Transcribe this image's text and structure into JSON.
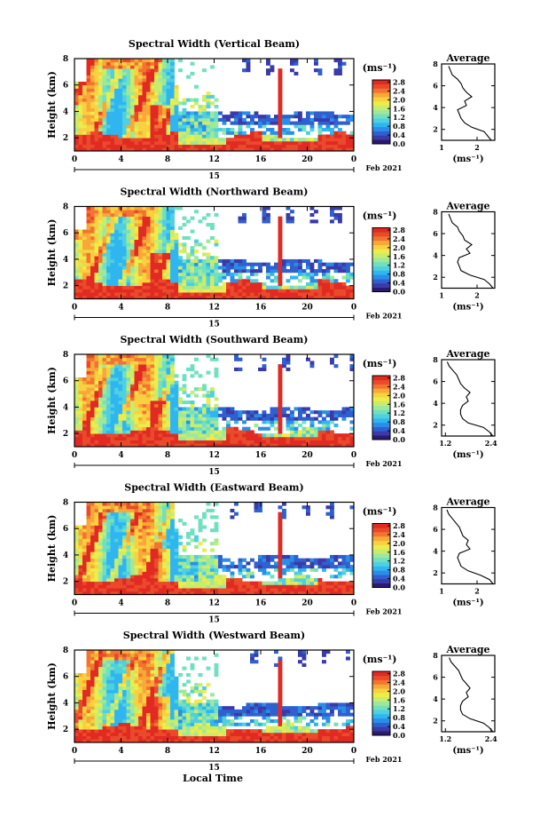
{
  "figure": {
    "xlabel": "Local Time",
    "date_label": "15",
    "date_suffix": "Feb 2021",
    "colorbar_unit": "(ms⁻¹)",
    "avg_title": "Average",
    "avg_xlabel": "(ms⁻¹)",
    "palette": [
      "#2b1a6e",
      "#3a3aa8",
      "#2f60d0",
      "#2a8ee8",
      "#2fb6f0",
      "#4fd0e0",
      "#6fe0c0",
      "#9ee89a",
      "#c8ec6c",
      "#ecec4a",
      "#f8d040",
      "#f8a838",
      "#f27430",
      "#ea4a2a",
      "#e02a22"
    ],
    "missing_color": "#ffffff"
  },
  "chart_data": [
    {
      "type": "heatmap",
      "title": "Spectral Width (Vertical Beam)",
      "ylabel": "Height (km)",
      "x_ticks": [
        "0",
        "4",
        "8",
        "12",
        "16",
        "20",
        "0"
      ],
      "x_range_hours": [
        0,
        24
      ],
      "y_ticks": [
        "2",
        "4",
        "6",
        "8"
      ],
      "y_range_km": [
        1,
        8
      ],
      "colorbar_ticks": [
        "0.0",
        "0.4",
        "0.8",
        "1.2",
        "1.6",
        "2.0",
        "2.4",
        "2.8"
      ],
      "colorbar_range": [
        0.0,
        2.9
      ],
      "average_profile": {
        "x_ticks": [
          "1",
          "2"
        ],
        "x_range": [
          1.0,
          2.5
        ],
        "y_ticks": [
          "2",
          "4",
          "6",
          "8"
        ],
        "height_km": [
          1.0,
          1.4,
          1.8,
          2.2,
          2.6,
          3.0,
          3.4,
          3.8,
          4.2,
          4.6,
          5.0,
          5.4,
          5.8,
          6.2,
          6.6,
          7.0,
          7.4,
          7.8
        ],
        "value": [
          2.4,
          2.3,
          2.2,
          1.85,
          1.65,
          1.55,
          1.5,
          1.45,
          1.7,
          1.65,
          1.85,
          1.7,
          1.6,
          1.55,
          1.45,
          1.3,
          1.25,
          1.2
        ]
      }
    },
    {
      "type": "heatmap",
      "title": "Spectral Width (Northward Beam)",
      "ylabel": "Height (km)",
      "x_ticks": [
        "0",
        "4",
        "8",
        "12",
        "16",
        "20",
        "0"
      ],
      "x_range_hours": [
        0,
        24
      ],
      "y_ticks": [
        "2",
        "4",
        "6",
        "8"
      ],
      "y_range_km": [
        1,
        8
      ],
      "colorbar_ticks": [
        "0.0",
        "0.4",
        "0.8",
        "1.2",
        "1.6",
        "2.0",
        "2.4",
        "2.8"
      ],
      "colorbar_range": [
        0.0,
        2.9
      ],
      "average_profile": {
        "x_ticks": [
          "1",
          "2"
        ],
        "x_range": [
          1.0,
          2.5
        ],
        "y_ticks": [
          "2",
          "4",
          "6",
          "8"
        ],
        "height_km": [
          1.0,
          1.4,
          1.8,
          2.2,
          2.6,
          3.0,
          3.4,
          3.8,
          4.2,
          4.6,
          5.0,
          5.4,
          5.8,
          6.2,
          6.6,
          7.0,
          7.4,
          7.8
        ],
        "value": [
          2.45,
          2.35,
          2.2,
          1.8,
          1.55,
          1.5,
          1.45,
          1.5,
          1.8,
          1.7,
          1.85,
          1.65,
          1.6,
          1.5,
          1.45,
          1.3,
          1.25,
          1.2
        ]
      }
    },
    {
      "type": "heatmap",
      "title": "Spectral Width (Southward Beam)",
      "ylabel": "Height (km)",
      "x_ticks": [
        "0",
        "4",
        "8",
        "12",
        "16",
        "20",
        "0"
      ],
      "x_range_hours": [
        0,
        24
      ],
      "y_ticks": [
        "2",
        "4",
        "6",
        "8"
      ],
      "y_range_km": [
        1,
        8
      ],
      "colorbar_ticks": [
        "0.0",
        "0.4",
        "0.8",
        "1.2",
        "1.6",
        "2.0",
        "2.4",
        "2.8"
      ],
      "colorbar_range": [
        0.0,
        2.9
      ],
      "average_profile": {
        "x_ticks": [
          "1.2",
          "2.4"
        ],
        "x_range": [
          1.1,
          2.5
        ],
        "y_ticks": [
          "2",
          "4",
          "6",
          "8"
        ],
        "height_km": [
          1.0,
          1.4,
          1.8,
          2.2,
          2.6,
          3.0,
          3.4,
          3.8,
          4.2,
          4.6,
          5.0,
          5.4,
          5.8,
          6.2,
          6.6,
          7.0,
          7.4,
          7.8
        ],
        "value": [
          2.45,
          2.35,
          2.2,
          1.8,
          1.65,
          1.6,
          1.6,
          1.65,
          1.8,
          1.75,
          1.85,
          1.7,
          1.6,
          1.55,
          1.5,
          1.4,
          1.3,
          1.25
        ]
      }
    },
    {
      "type": "heatmap",
      "title": "Spectral Width (Eastward Beam)",
      "ylabel": "Height (km)",
      "x_ticks": [
        "0",
        "4",
        "8",
        "12",
        "16",
        "20",
        "0"
      ],
      "x_range_hours": [
        0,
        24
      ],
      "y_ticks": [
        "2",
        "4",
        "6",
        "8"
      ],
      "y_range_km": [
        1,
        8
      ],
      "colorbar_ticks": [
        "0.0",
        "0.4",
        "0.8",
        "1.2",
        "1.6",
        "2.0",
        "2.4",
        "2.8"
      ],
      "colorbar_range": [
        0.0,
        2.9
      ],
      "average_profile": {
        "x_ticks": [
          "1",
          "2"
        ],
        "x_range": [
          1.0,
          2.5
        ],
        "y_ticks": [
          "2",
          "4",
          "6",
          "8"
        ],
        "height_km": [
          1.0,
          1.4,
          1.8,
          2.2,
          2.6,
          3.0,
          3.4,
          3.8,
          4.2,
          4.6,
          5.0,
          5.4,
          5.8,
          6.2,
          6.6,
          7.0,
          7.4,
          7.8
        ],
        "value": [
          2.45,
          2.35,
          2.1,
          1.75,
          1.55,
          1.5,
          1.45,
          1.5,
          1.8,
          1.7,
          1.75,
          1.6,
          1.55,
          1.5,
          1.4,
          1.3,
          1.2,
          1.15
        ]
      }
    },
    {
      "type": "heatmap",
      "title": "Spectral Width (Westward Beam)",
      "ylabel": "Height (km)",
      "x_ticks": [
        "0",
        "4",
        "8",
        "12",
        "16",
        "20",
        "0"
      ],
      "x_range_hours": [
        0,
        24
      ],
      "y_ticks": [
        "2",
        "4",
        "6",
        "8"
      ],
      "y_range_km": [
        1,
        8
      ],
      "colorbar_ticks": [
        "0.0",
        "0.4",
        "0.8",
        "1.2",
        "1.6",
        "2.0",
        "2.4",
        "2.8"
      ],
      "colorbar_range": [
        0.0,
        2.9
      ],
      "average_profile": {
        "x_ticks": [
          "1.2",
          "2.4"
        ],
        "x_range": [
          1.1,
          2.5
        ],
        "y_ticks": [
          "2",
          "4",
          "6",
          "8"
        ],
        "height_km": [
          1.0,
          1.4,
          1.8,
          2.2,
          2.6,
          3.0,
          3.4,
          3.8,
          4.2,
          4.6,
          5.0,
          5.4,
          5.8,
          6.2,
          6.6,
          7.0,
          7.4,
          7.8
        ],
        "value": [
          2.45,
          2.35,
          2.2,
          1.85,
          1.65,
          1.6,
          1.6,
          1.65,
          1.8,
          1.75,
          1.85,
          1.75,
          1.65,
          1.6,
          1.55,
          1.45,
          1.35,
          1.3
        ]
      }
    }
  ]
}
